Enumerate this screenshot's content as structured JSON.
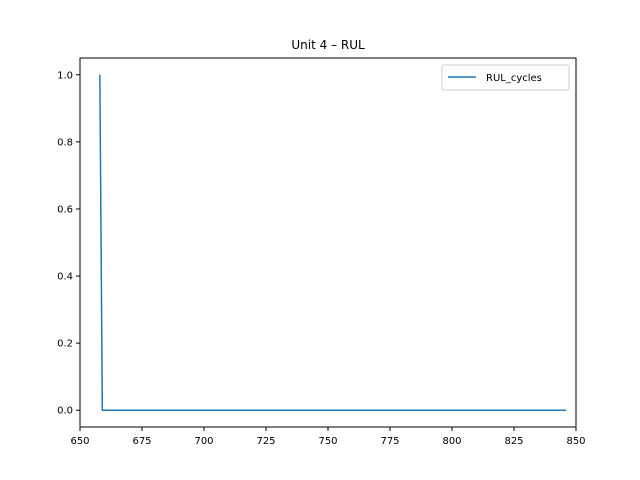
{
  "chart_data": {
    "type": "line",
    "title": "Unit 4  –  RUL",
    "xlabel": "",
    "ylabel": "",
    "xlim": [
      650,
      850
    ],
    "ylim": [
      -0.05,
      1.05
    ],
    "xticks": [
      650,
      675,
      700,
      725,
      750,
      775,
      800,
      825,
      850
    ],
    "yticks": [
      0.0,
      0.2,
      0.4,
      0.6,
      0.8,
      1.0
    ],
    "xtick_labels": [
      "650",
      "675",
      "700",
      "725",
      "750",
      "775",
      "800",
      "825",
      "850"
    ],
    "ytick_labels": [
      "0.0",
      "0.2",
      "0.4",
      "0.6",
      "0.8",
      "1.0"
    ],
    "grid": false,
    "legend_position": "top-right",
    "series": [
      {
        "name": "RUL_cycles",
        "color": "#1f77b4",
        "x": [
          658,
          659,
          846
        ],
        "y": [
          1.0,
          0.0,
          0.0
        ]
      }
    ]
  }
}
